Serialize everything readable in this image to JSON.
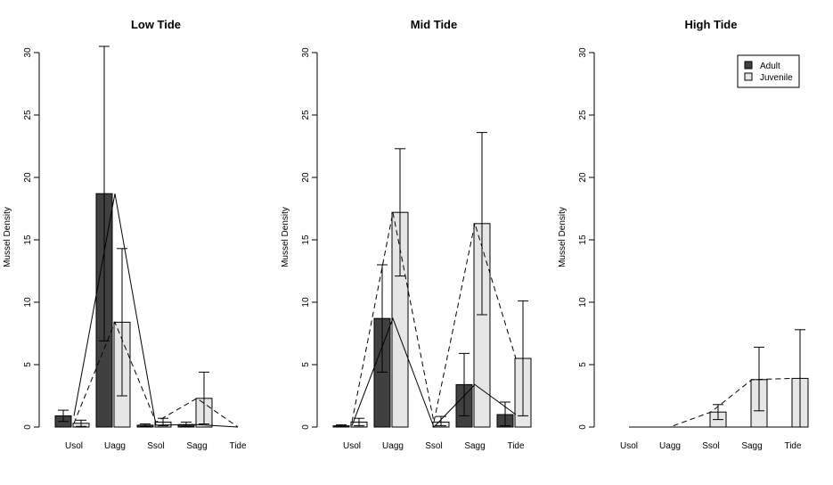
{
  "chart_data": [
    {
      "type": "bar",
      "title": "Low Tide",
      "xlabel": "",
      "ylabel": "Mussel Density",
      "ylim": [
        0,
        30
      ],
      "yticks": [
        0,
        5,
        10,
        15,
        20,
        25,
        30
      ],
      "categories": [
        "Usol",
        "Uagg",
        "Ssol",
        "Sagg",
        "Tide"
      ],
      "series": [
        {
          "name": "Adult",
          "values": [
            0.9,
            18.7,
            0.15,
            0.2,
            0
          ],
          "err_low": [
            0.45,
            6.9,
            0.05,
            0.05,
            null
          ],
          "err_high": [
            1.35,
            30.5,
            0.25,
            0.4,
            null
          ],
          "color": "#404040",
          "line_style": "solid"
        },
        {
          "name": "Juvenile",
          "values": [
            0.3,
            8.4,
            0.4,
            2.3,
            0
          ],
          "err_low": [
            0.05,
            2.5,
            0.1,
            0.25,
            null
          ],
          "err_high": [
            0.55,
            14.3,
            0.7,
            4.4,
            null
          ],
          "color": "#e6e6e6",
          "line_style": "dashed"
        }
      ]
    },
    {
      "type": "bar",
      "title": "Mid Tide",
      "xlabel": "",
      "ylabel": "Mussel Density",
      "ylim": [
        0,
        30
      ],
      "yticks": [
        0,
        5,
        10,
        15,
        20,
        25,
        30
      ],
      "categories": [
        "Usol",
        "Uagg",
        "Ssol",
        "Sagg",
        "Tide"
      ],
      "series": [
        {
          "name": "Adult",
          "values": [
            0.1,
            8.7,
            0,
            3.4,
            1.0
          ],
          "err_low": [
            0.02,
            4.4,
            null,
            0.9,
            0.1
          ],
          "err_high": [
            0.18,
            13.0,
            null,
            5.9,
            2.0
          ],
          "color": "#404040",
          "line_style": "solid"
        },
        {
          "name": "Juvenile",
          "values": [
            0.4,
            17.2,
            0.4,
            16.3,
            5.5
          ],
          "err_low": [
            0.1,
            12.1,
            0.1,
            9.0,
            0.9
          ],
          "err_high": [
            0.7,
            22.3,
            0.85,
            23.6,
            10.1
          ],
          "color": "#e6e6e6",
          "line_style": "dashed"
        }
      ]
    },
    {
      "type": "bar",
      "title": "High Tide",
      "xlabel": "",
      "ylabel": "Mussel Density",
      "ylim": [
        0,
        30
      ],
      "yticks": [
        0,
        5,
        10,
        15,
        20,
        25,
        30
      ],
      "categories": [
        "Usol",
        "Uagg",
        "Ssol",
        "Sagg",
        "Tide"
      ],
      "legend": {
        "position": "top-right",
        "entries": [
          "Adult",
          "Juvenile"
        ]
      },
      "series": [
        {
          "name": "Adult",
          "values": [
            0,
            0,
            0,
            0,
            0
          ],
          "err_low": [
            null,
            null,
            null,
            null,
            null
          ],
          "err_high": [
            null,
            null,
            null,
            null,
            null
          ],
          "color": "#404040",
          "line_style": "solid"
        },
        {
          "name": "Juvenile",
          "values": [
            0,
            0,
            1.2,
            3.8,
            3.9
          ],
          "err_low": [
            null,
            null,
            0.6,
            1.3,
            0.0
          ],
          "err_high": [
            null,
            null,
            1.8,
            6.4,
            7.8
          ],
          "color": "#e6e6e6",
          "line_style": "dashed"
        }
      ]
    }
  ]
}
